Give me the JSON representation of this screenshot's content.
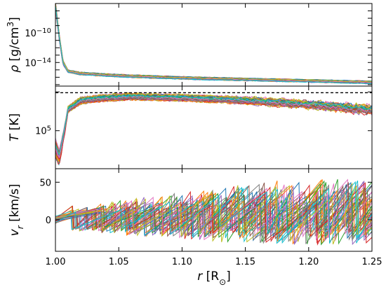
{
  "chart_data": [
    {
      "type": "line",
      "panel": "density",
      "ylabel": "ρ [g/cm³]",
      "yscale": "log",
      "ylim_log10": [
        -17.2,
        -6.0
      ],
      "yticks": [
        {
          "value": -10,
          "base": "10",
          "exp": "−10"
        },
        {
          "value": -14,
          "base": "10",
          "exp": "−14"
        }
      ],
      "xlim": [
        1.0,
        1.25
      ],
      "n_series": 40,
      "profile_log10": {
        "r": [
          1.0,
          1.003,
          1.006,
          1.01,
          1.02,
          1.05,
          1.1,
          1.15,
          1.2,
          1.25
        ],
        "value": [
          -6.3,
          -10.5,
          -14.0,
          -15.2,
          -15.5,
          -15.8,
          -16.1,
          -16.3,
          -16.5,
          -16.7
        ]
      }
    },
    {
      "type": "line",
      "panel": "temperature",
      "ylabel": "T [K]",
      "yscale": "log",
      "ylim_log10": [
        4.02,
        6.15
      ],
      "yticks": [
        {
          "value": 5,
          "base": "10",
          "exp": "5"
        }
      ],
      "reference_line": {
        "value_log10": 5.98,
        "style": "dashed"
      },
      "xlim": [
        1.0,
        1.25
      ],
      "n_series": 40,
      "profile_log10": {
        "r": [
          1.0,
          1.003,
          1.006,
          1.01,
          1.02,
          1.04,
          1.06,
          1.1,
          1.15,
          1.2,
          1.25
        ],
        "value": [
          4.55,
          4.3,
          4.8,
          5.55,
          5.78,
          5.85,
          5.88,
          5.85,
          5.8,
          5.72,
          5.6
        ]
      }
    },
    {
      "type": "line",
      "panel": "velocity",
      "ylabel": "vᵣ [km/s]",
      "ylim": [
        -42,
        68
      ],
      "yticks": [
        0,
        50
      ],
      "xlim": [
        1.0,
        1.25
      ],
      "xticks": [
        1.0,
        1.05,
        1.1,
        1.15,
        1.2,
        1.25
      ],
      "xlabel": "r [R⊙]",
      "n_series": 40,
      "amplitude_range": [
        -38,
        62
      ]
    }
  ],
  "series_colors": [
    "#1f77b4",
    "#ff7f0e",
    "#2ca02c",
    "#d62728",
    "#9467bd",
    "#8c564b",
    "#e377c2",
    "#7f7f7f",
    "#bcbd22",
    "#17becf"
  ],
  "labels": {
    "rho_symbol": "ρ",
    "rho_unit": "[g/cm",
    "rho_exp": "3",
    "rho_close": "]",
    "t_symbol": "T",
    "t_unit": "[K]",
    "v_symbol": "v",
    "v_sub": "r",
    "v_unit": "[km/s]",
    "x_symbol": "r",
    "x_unit_open": "[R",
    "x_unit_sub": "⊙",
    "x_unit_close": "]"
  }
}
